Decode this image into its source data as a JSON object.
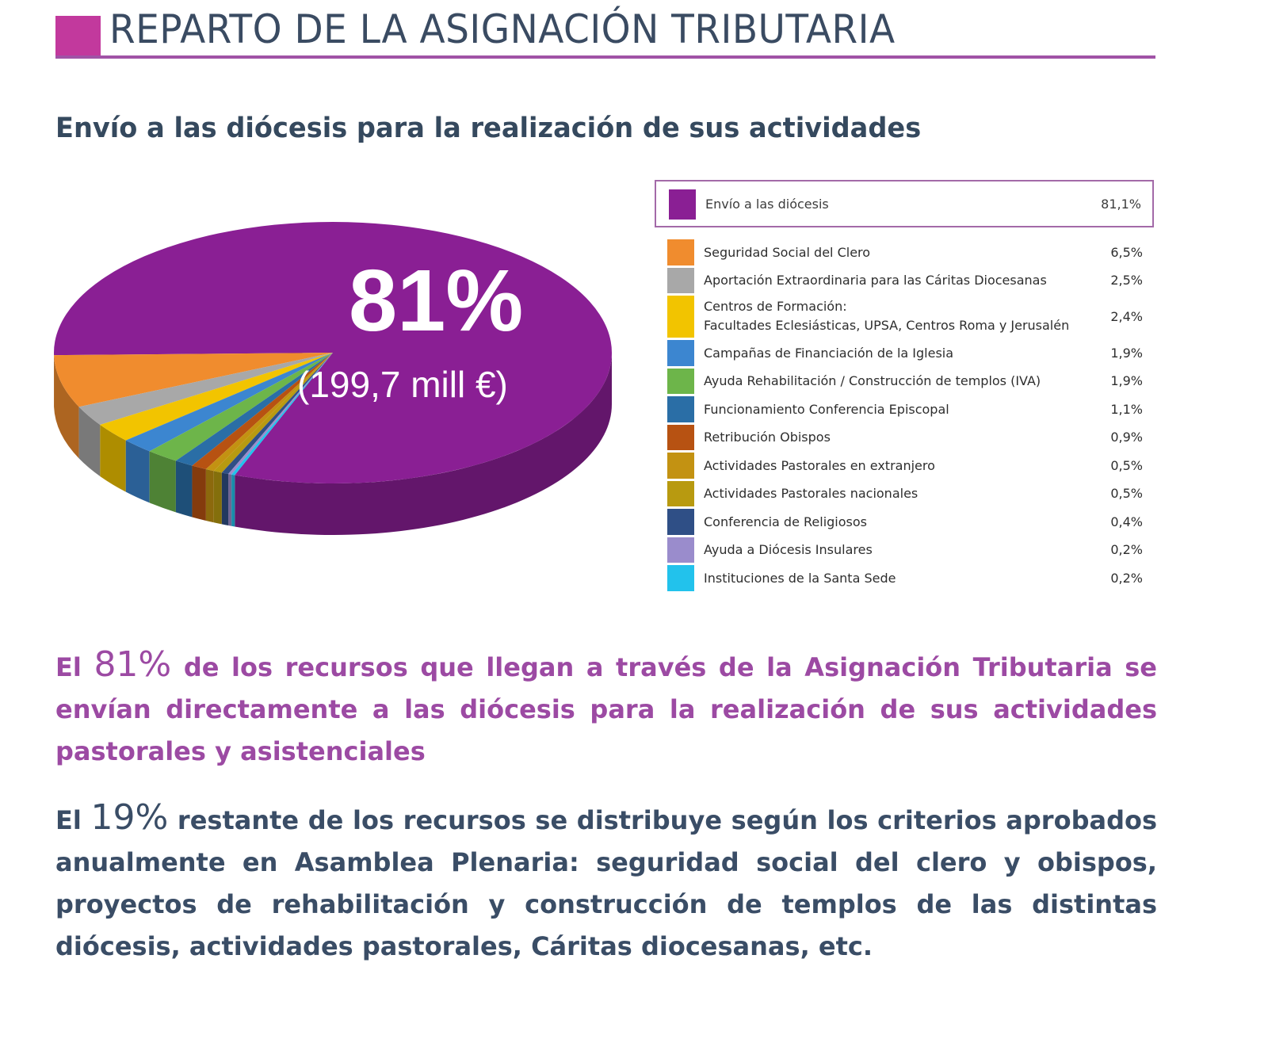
{
  "header": {
    "title": "REPARTO DE LA ASIGNACIÓN TRIBUTARIA",
    "subtitle": "Envío a las diócesis para la realización de sus actividades",
    "accent_color": "#c2399d"
  },
  "pie_overlay": {
    "big_percent": "81%",
    "amount": "(199,7 mill €)"
  },
  "chart_data": {
    "type": "pie",
    "style": "3d",
    "slices": [
      {
        "label": "Envío a las diócesis",
        "value_text": "81,1%",
        "value": 81.1,
        "color": "#8a1f94"
      },
      {
        "label": "Seguridad Social del Clero",
        "value_text": "6,5%",
        "value": 6.5,
        "color": "#f08c2e"
      },
      {
        "label": "Aportación Extraordinaria para las Cáritas Diocesanas",
        "value_text": "2,5%",
        "value": 2.5,
        "color": "#a8a8a8"
      },
      {
        "label_lines": [
          "Centros de Formación:",
          "Facultades Eclesiásticas, UPSA, Centros Roma y Jerusalén"
        ],
        "value_text": "2,4%",
        "value": 2.4,
        "color": "#f2c400"
      },
      {
        "label": "Campañas de Financiación de la Iglesia",
        "value_text": "1,9%",
        "value": 1.9,
        "color": "#3c86d0"
      },
      {
        "label": "Ayuda Rehabilitación / Construcción de templos (IVA)",
        "value_text": "1,9%",
        "value": 1.9,
        "color": "#6db54a"
      },
      {
        "label": "Funcionamiento Conferencia Episcopal",
        "value_text": "1,1%",
        "value": 1.1,
        "color": "#2a6ea6"
      },
      {
        "label": "Retribución Obispos",
        "value_text": "0,9%",
        "value": 0.9,
        "color": "#b75212"
      },
      {
        "label": "Actividades Pastorales en extranjero",
        "value_text": "0,5%",
        "value": 0.5,
        "color": "#c39212"
      },
      {
        "label": "Actividades Pastorales nacionales",
        "value_text": "0,5%",
        "value": 0.5,
        "color": "#b89a10"
      },
      {
        "label": "Conferencia de Religiosos",
        "value_text": "0,4%",
        "value": 0.4,
        "color": "#2f4f86"
      },
      {
        "label": "Ayuda a Diócesis Insulares",
        "value_text": "0,2%",
        "value": 0.2,
        "color": "#9a8ccc"
      },
      {
        "label": "Instituciones de la Santa Sede",
        "value_text": "0,2%",
        "value": 0.2,
        "color": "#22c2ec"
      }
    ]
  },
  "paragraphs": [
    {
      "prefix": "El ",
      "number": "81%",
      "text": " de los recursos que llegan a través de la Asignación Tributaria se envían directamente a las diócesis para la realización de sus actividades pastorales y asistenciales"
    },
    {
      "prefix": "El ",
      "number": "19%",
      "text": " restante de los recursos se distribuye según los criterios aprobados anualmente en Asamblea Plenaria: seguridad social del clero y obispos, proyectos de rehabilitación y construcción de templos de las distintas diócesis, actividades pastorales, Cáritas diocesanas, etc."
    }
  ]
}
